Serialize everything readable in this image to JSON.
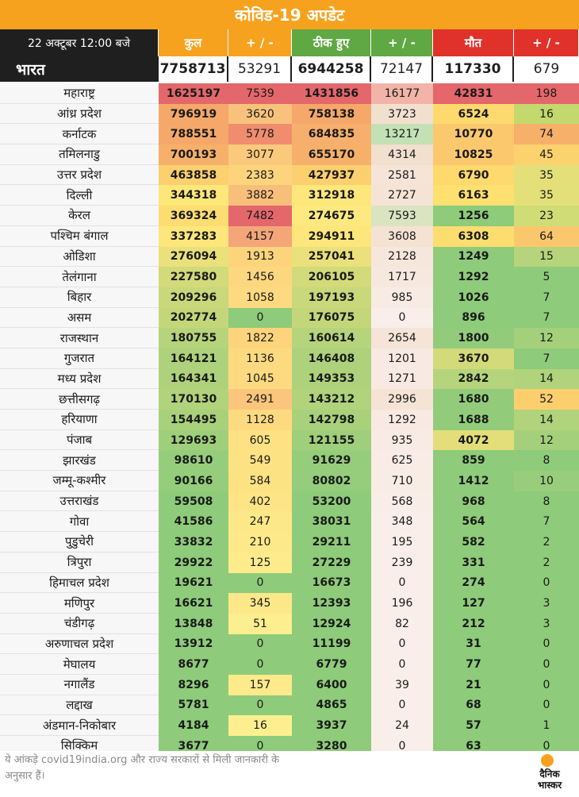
{
  "title": "कोविड-19 अपडेट",
  "header": {
    "date": "22 अक्टूबर 12:00 बजे",
    "columns": [
      {
        "label": "कुल",
        "bg": "#f7a21e"
      },
      {
        "label": "+ / -",
        "bg": "#f7a21e"
      },
      {
        "label": "ठीक हुए",
        "bg": "#5fa844"
      },
      {
        "label": "+ / -",
        "bg": "#5fa844"
      },
      {
        "label": "मौत",
        "bg": "#e0312b"
      },
      {
        "label": "+ / -",
        "bg": "#e0312b"
      }
    ]
  },
  "india": {
    "name": "भारत",
    "values": [
      "7758713",
      "53291",
      "6944258",
      "72147",
      "117330",
      "679"
    ]
  },
  "states": [
    {
      "name": "महाराष्ट्र",
      "values": [
        "1625197",
        "7539",
        "1431856",
        "16177",
        "42831",
        "198"
      ],
      "colors": [
        "#e4676b",
        "#e4676b",
        "#e4676b",
        "#f2b4a8",
        "#e4676b",
        "#e4676b"
      ]
    },
    {
      "name": "आंध्र प्रदेश",
      "values": [
        "796919",
        "3620",
        "758138",
        "3723",
        "6524",
        "16"
      ],
      "colors": [
        "#f5a869",
        "#f8c27c",
        "#f5a869",
        "#f2e0cf",
        "#fdd96e",
        "#c3d86d"
      ]
    },
    {
      "name": "कर्नाटक",
      "values": [
        "788551",
        "5778",
        "684835",
        "13217",
        "10770",
        "74"
      ],
      "colors": [
        "#f5a869",
        "#f08d6e",
        "#f7af6d",
        "#c4e1b6",
        "#fcc86e",
        "#f7b06a"
      ]
    },
    {
      "name": "तमिलनाडु",
      "values": [
        "700193",
        "3077",
        "655170",
        "4314",
        "10825",
        "45"
      ],
      "colors": [
        "#f7b06a",
        "#fbc97b",
        "#f7b06a",
        "#f2e0cf",
        "#fcc86e",
        "#fbd26e"
      ]
    },
    {
      "name": "उत्तर प्रदेश",
      "values": [
        "463858",
        "2383",
        "427937",
        "2581",
        "6790",
        "35"
      ],
      "colors": [
        "#fccf6f",
        "#fdd47c",
        "#fccf6f",
        "#f6e4d8",
        "#fdd96e",
        "#e3e07a"
      ]
    },
    {
      "name": "दिल्ली",
      "values": [
        "344318",
        "3882",
        "312918",
        "2727",
        "6163",
        "35"
      ],
      "colors": [
        "#fde77a",
        "#f8bf7b",
        "#fde77a",
        "#f5e3d5",
        "#fde06f",
        "#e3e07a"
      ]
    },
    {
      "name": "केरल",
      "values": [
        "369324",
        "7482",
        "274675",
        "7593",
        "1256",
        "23"
      ],
      "colors": [
        "#fddd72",
        "#e4676b",
        "#fde97f",
        "#dae4c1",
        "#8ecb7a",
        "#d0dc75"
      ]
    },
    {
      "name": "पश्चिम बंगाल",
      "values": [
        "337283",
        "4157",
        "294911",
        "3608",
        "6308",
        "64"
      ],
      "colors": [
        "#fde67b",
        "#f5a678",
        "#fde67b",
        "#f4e2d3",
        "#fddd6f",
        "#fbc76d"
      ]
    },
    {
      "name": "ओडिशा",
      "values": [
        "276094",
        "1913",
        "257041",
        "2128",
        "1249",
        "15"
      ],
      "colors": [
        "#eae07c",
        "#fdd47c",
        "#eae07c",
        "#f6e6dc",
        "#8ecb7a",
        "#b5d47b"
      ]
    },
    {
      "name": "तेलंगाना",
      "values": [
        "227580",
        "1456",
        "206105",
        "1717",
        "1292",
        "5"
      ],
      "colors": [
        "#d2da7a",
        "#fdd780",
        "#d2da7a",
        "#f7e8df",
        "#8ecb7a",
        "#8ecb7a"
      ]
    },
    {
      "name": "बिहार",
      "values": [
        "209296",
        "1058",
        "197193",
        "985",
        "1026",
        "7"
      ],
      "colors": [
        "#c8d87a",
        "#fdda80",
        "#c8d87a",
        "#f8ebe3",
        "#8ecb7a",
        "#8ecb7a"
      ]
    },
    {
      "name": "असम",
      "values": [
        "202774",
        "0",
        "176075",
        "0",
        "896",
        "7"
      ],
      "colors": [
        "#c3d77a",
        "#8ecb7a",
        "#c3d77a",
        "#f9eee9",
        "#8ecb7a",
        "#8ecb7a"
      ]
    },
    {
      "name": "राजस्थान",
      "values": [
        "180755",
        "1822",
        "160614",
        "2654",
        "1800",
        "12"
      ],
      "colors": [
        "#b6d47b",
        "#fdd47c",
        "#b6d47b",
        "#f5e4d7",
        "#92cc7a",
        "#a5d07b"
      ]
    },
    {
      "name": "गुजरात",
      "values": [
        "164121",
        "1136",
        "146408",
        "1201",
        "3670",
        "7"
      ],
      "colors": [
        "#aed27b",
        "#fdda80",
        "#aed27b",
        "#f8eae2",
        "#d2da7a",
        "#8ecb7a"
      ]
    },
    {
      "name": "मध्य प्रदेश",
      "values": [
        "164341",
        "1045",
        "149353",
        "1271",
        "2842",
        "14"
      ],
      "colors": [
        "#aed27b",
        "#fdda80",
        "#aed27b",
        "#f8eae2",
        "#b6d47b",
        "#b0d37b"
      ]
    },
    {
      "name": "छत्तीसगढ़",
      "values": [
        "170130",
        "2491",
        "143212",
        "2996",
        "1680",
        "52"
      ],
      "colors": [
        "#b0d37b",
        "#fbc67b",
        "#b0d37b",
        "#f5e3d5",
        "#92cc7a",
        "#fcce6e"
      ]
    },
    {
      "name": "हरियाणा",
      "values": [
        "154495",
        "1128",
        "142798",
        "1292",
        "1688",
        "14"
      ],
      "colors": [
        "#a9d17b",
        "#fdda80",
        "#a9d17b",
        "#f8eae2",
        "#92cc7a",
        "#b0d37b"
      ]
    },
    {
      "name": "पंजाब",
      "values": [
        "129693",
        "605",
        "121155",
        "935",
        "4072",
        "12"
      ],
      "colors": [
        "#9fcf7b",
        "#fde183",
        "#9fcf7b",
        "#f8ebe3",
        "#e3de7a",
        "#a5d07b"
      ]
    },
    {
      "name": "झारखंड",
      "values": [
        "98610",
        "549",
        "91629",
        "625",
        "859",
        "8"
      ],
      "colors": [
        "#96cd7b",
        "#fde283",
        "#96cd7b",
        "#f9ece6",
        "#8ecb7a",
        "#8ecb7a"
      ]
    },
    {
      "name": "जम्मू-कश्मीर",
      "values": [
        "90166",
        "584",
        "80802",
        "710",
        "1412",
        "10"
      ],
      "colors": [
        "#94cd7b",
        "#fde283",
        "#94cd7b",
        "#f9ece5",
        "#8ecb7a",
        "#98ce7b"
      ]
    },
    {
      "name": "उत्तराखंड",
      "values": [
        "59508",
        "402",
        "53200",
        "568",
        "968",
        "8"
      ],
      "colors": [
        "#8ecb7a",
        "#fde486",
        "#8ecb7a",
        "#f9ede7",
        "#8ecb7a",
        "#8ecb7a"
      ]
    },
    {
      "name": "गोवा",
      "values": [
        "41586",
        "247",
        "38031",
        "348",
        "564",
        "7"
      ],
      "colors": [
        "#8ecb7a",
        "#fde889",
        "#8ecb7a",
        "#f9eee9",
        "#8ecb7a",
        "#8ecb7a"
      ]
    },
    {
      "name": "पुडुचेरी",
      "values": [
        "33832",
        "210",
        "29211",
        "195",
        "582",
        "2"
      ],
      "colors": [
        "#8ecb7a",
        "#fde98a",
        "#8ecb7a",
        "#f9eee9",
        "#8ecb7a",
        "#8ecb7a"
      ]
    },
    {
      "name": "त्रिपुरा",
      "values": [
        "29922",
        "125",
        "27229",
        "239",
        "331",
        "2"
      ],
      "colors": [
        "#8ecb7a",
        "#fdeb8c",
        "#8ecb7a",
        "#f9eee9",
        "#8ecb7a",
        "#8ecb7a"
      ]
    },
    {
      "name": "हिमाचल प्रदेश",
      "values": [
        "19621",
        "0",
        "16673",
        "0",
        "274",
        "0"
      ],
      "colors": [
        "#8ecb7a",
        "#8ecb7a",
        "#8ecb7a",
        "#f9eee9",
        "#8ecb7a",
        "#8ecb7a"
      ]
    },
    {
      "name": "मणिपुर",
      "values": [
        "16621",
        "345",
        "12393",
        "196",
        "127",
        "3"
      ],
      "colors": [
        "#8ecb7a",
        "#fde889",
        "#8ecb7a",
        "#f9eee9",
        "#8ecb7a",
        "#8ecb7a"
      ]
    },
    {
      "name": "चंडीगढ़",
      "values": [
        "13848",
        "51",
        "12924",
        "82",
        "212",
        "3"
      ],
      "colors": [
        "#8ecb7a",
        "#fdee8f",
        "#8ecb7a",
        "#f9eee9",
        "#8ecb7a",
        "#8ecb7a"
      ]
    },
    {
      "name": "अरुणाचल प्रदेश",
      "values": [
        "13912",
        "0",
        "11199",
        "0",
        "31",
        "0"
      ],
      "colors": [
        "#8ecb7a",
        "#8ecb7a",
        "#8ecb7a",
        "#f9eee9",
        "#8ecb7a",
        "#8ecb7a"
      ]
    },
    {
      "name": "मेघालय",
      "values": [
        "8677",
        "0",
        "6779",
        "0",
        "77",
        "0"
      ],
      "colors": [
        "#8ecb7a",
        "#8ecb7a",
        "#8ecb7a",
        "#f9eee9",
        "#8ecb7a",
        "#8ecb7a"
      ]
    },
    {
      "name": "नगालैंड",
      "values": [
        "8296",
        "157",
        "6400",
        "39",
        "21",
        "0"
      ],
      "colors": [
        "#8ecb7a",
        "#fdea8b",
        "#8ecb7a",
        "#f9eee9",
        "#8ecb7a",
        "#8ecb7a"
      ]
    },
    {
      "name": "लद्दाख",
      "values": [
        "5781",
        "0",
        "4865",
        "0",
        "68",
        "0"
      ],
      "colors": [
        "#8ecb7a",
        "#8ecb7a",
        "#8ecb7a",
        "#f9eee9",
        "#8ecb7a",
        "#8ecb7a"
      ]
    },
    {
      "name": "अंडमान-निकोबार",
      "values": [
        "4184",
        "16",
        "3937",
        "24",
        "57",
        "1"
      ],
      "colors": [
        "#8ecb7a",
        "#fdef90",
        "#8ecb7a",
        "#f9eee9",
        "#8ecb7a",
        "#8ecb7a"
      ]
    },
    {
      "name": "सिक्किम",
      "values": [
        "3677",
        "0",
        "3280",
        "0",
        "63",
        "0"
      ],
      "colors": [
        "#8ecb7a",
        "#8ecb7a",
        "#8ecb7a",
        "#f9eee9",
        "#8ecb7a",
        "#8ecb7a"
      ]
    }
  ],
  "footer": {
    "note": "ये आंकड़े covid19india.org और राज्य सरकारों से मिली जानकारी के अनुसार हैं।",
    "logo_line1": "दैनिक",
    "logo_line2": "भास्कर"
  }
}
